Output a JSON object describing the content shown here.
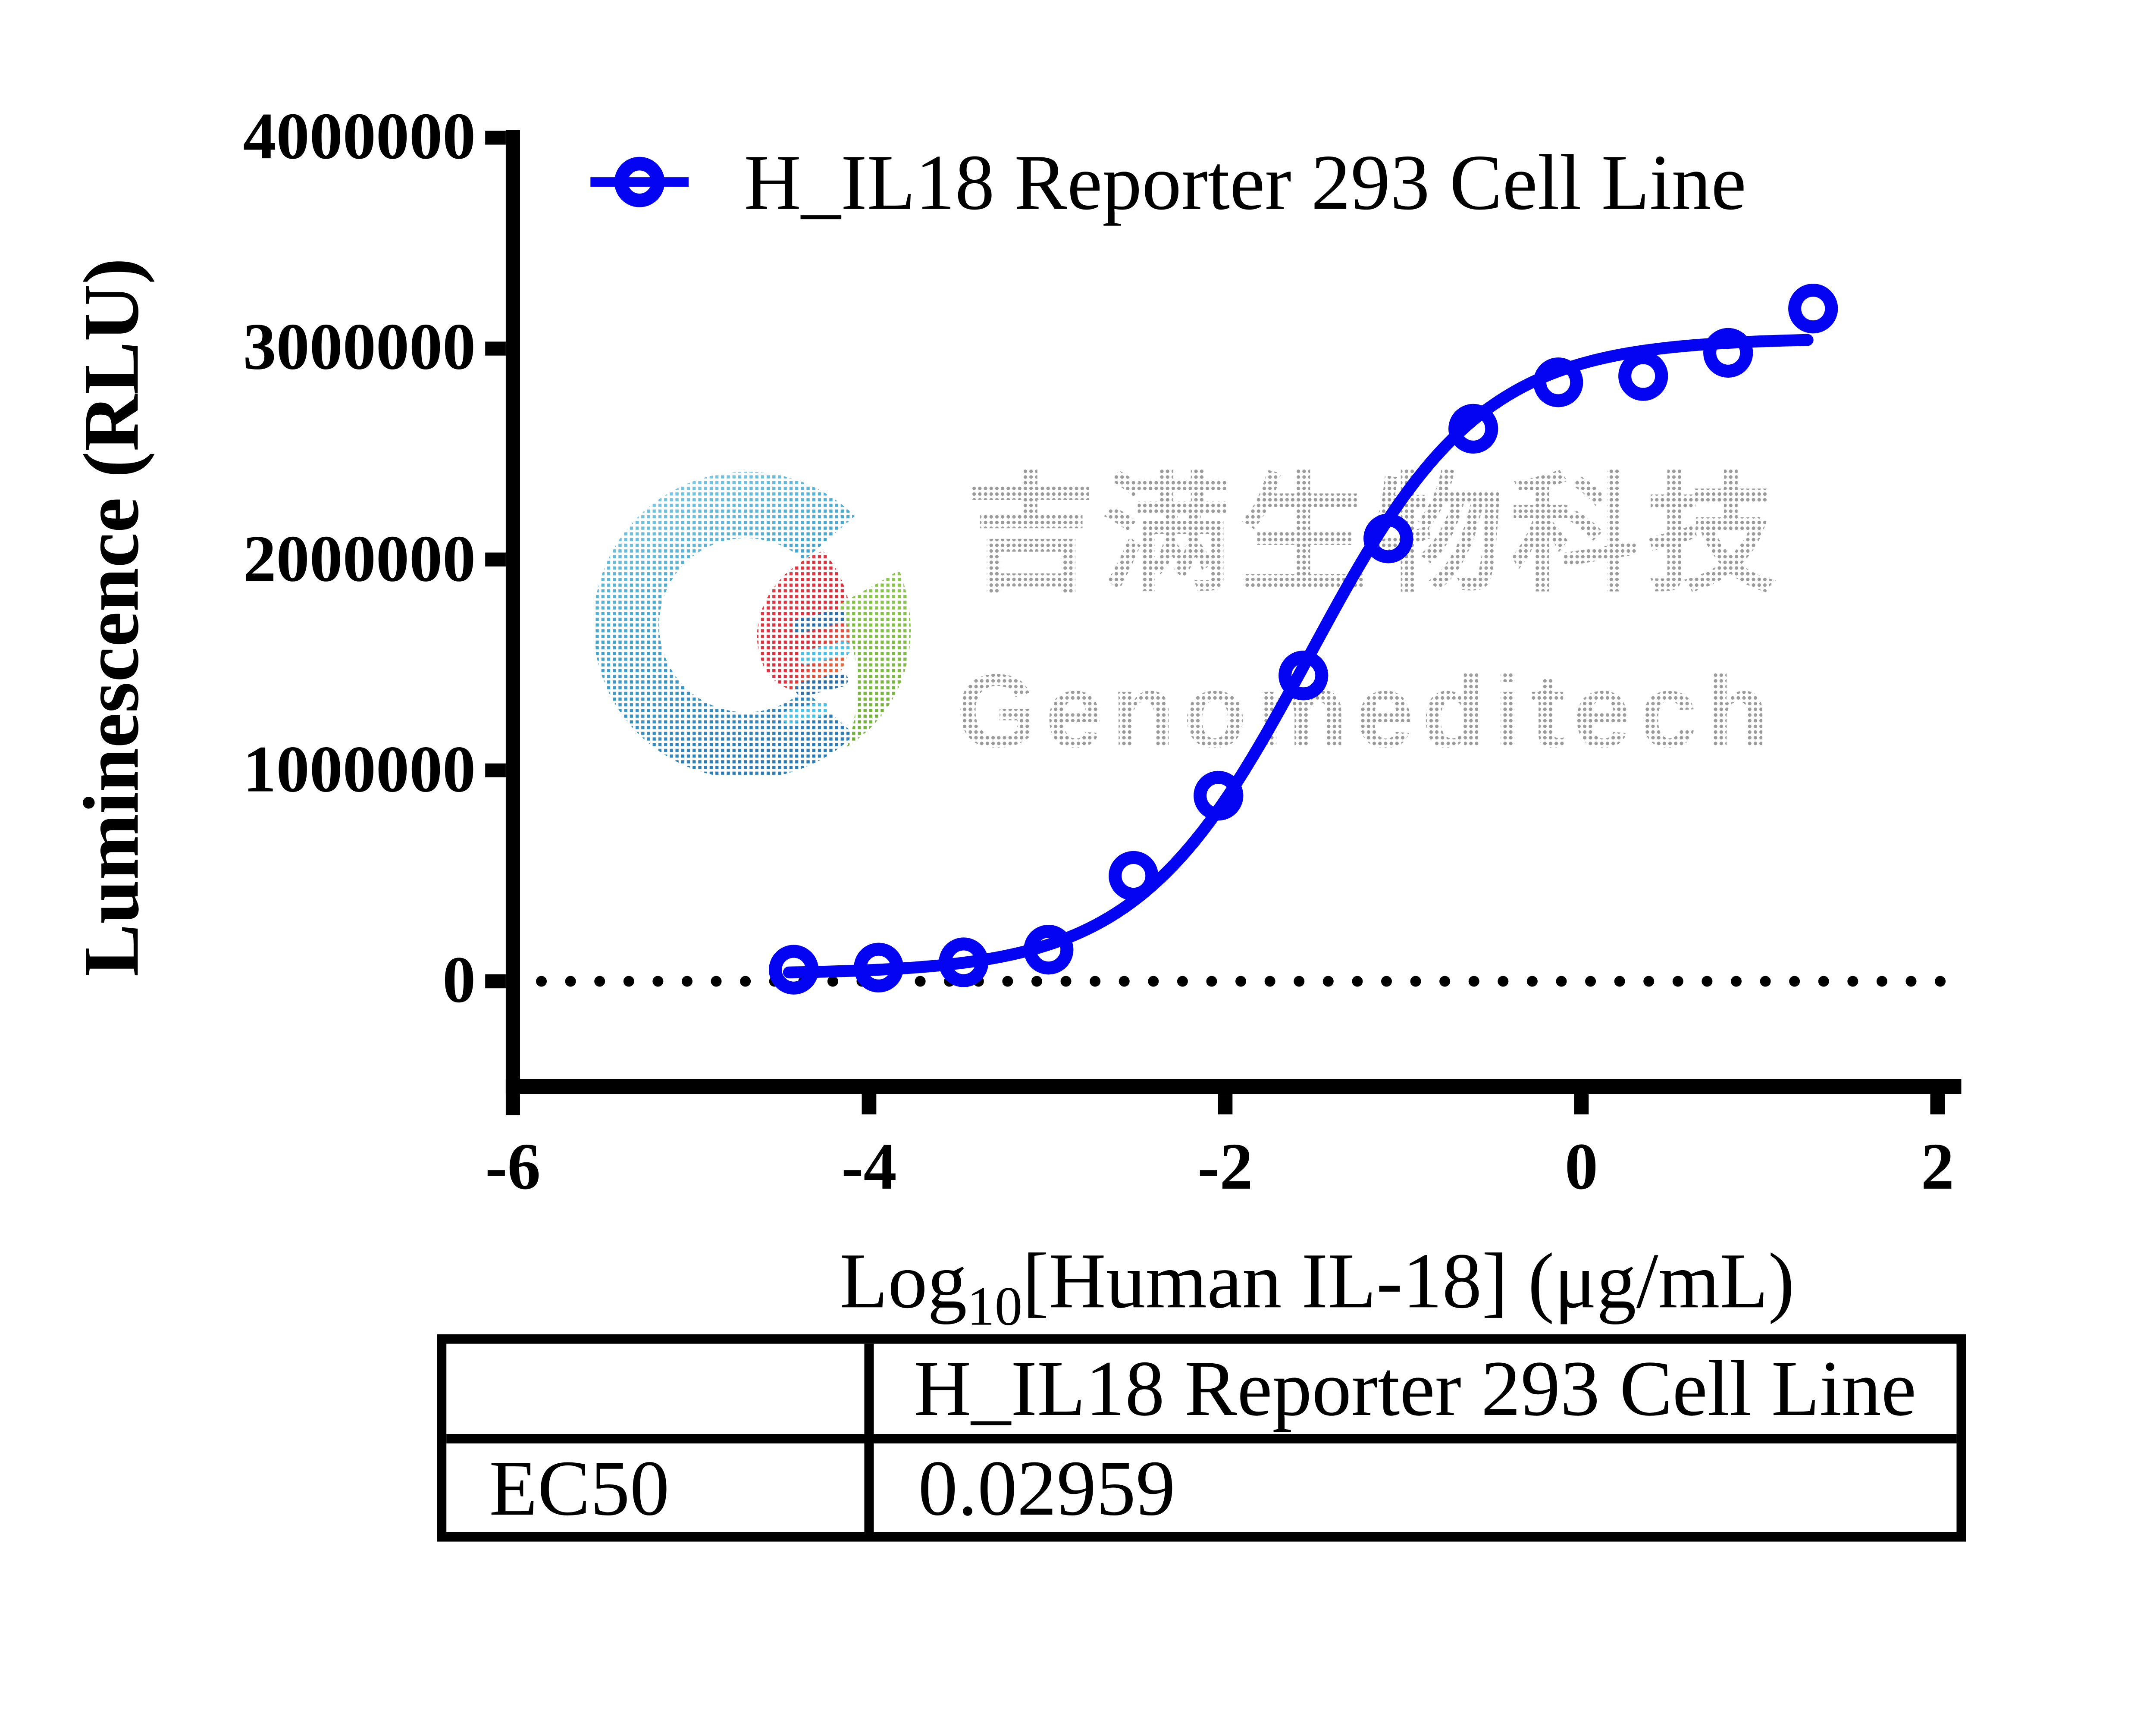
{
  "watermark": {
    "cn_text": "吉满生物科技",
    "en_text": "Genomeditech",
    "logo_icon": "genomeditech-logo",
    "logo_colors": {
      "crescent_top": "#8fd4e8",
      "crescent_bottom": "#2d7cb5",
      "drop_red": "#d92f3e",
      "drop_orange": "#f08a3c",
      "leaf_green": "#7cbb42",
      "rung_blue": "#2e6fa8",
      "rung_cyan": "#49c2e6"
    }
  },
  "legend": {
    "label": "H_IL18 Reporter 293 Cell Line",
    "marker": "open-circle-on-line",
    "color": "#0404f2"
  },
  "chart_data": {
    "type": "scatter",
    "title": "",
    "xlabel": "Log10[Human IL-18] (μg/mL)",
    "xlabel_parts": {
      "pre": "Log",
      "sub": "10",
      "post": "[Human IL-18] (μg/mL)"
    },
    "ylabel": "Luminescence (RLU)",
    "xlim": [
      -6,
      2
    ],
    "ylim": [
      0,
      4000000
    ],
    "xticks": [
      "-6",
      "-4",
      "-2",
      "0",
      "2"
    ],
    "xtick_values": [
      -6,
      -4,
      -2,
      0,
      2
    ],
    "yticks": [
      "0",
      "1000000",
      "2000000",
      "3000000",
      "4000000"
    ],
    "ytick_values": [
      0,
      1000000,
      2000000,
      3000000,
      4000000
    ],
    "grid": false,
    "legend_position": "top-left-inside",
    "baseline": {
      "y": 0,
      "style": "dotted",
      "color": "#000000"
    },
    "series": [
      {
        "name": "H_IL18 Reporter 293 Cell Line",
        "color": "#0404f2",
        "marker": "open-circle",
        "x": [
          -4.423,
          -3.946,
          -3.469,
          -2.992,
          -2.515,
          -2.038,
          -1.561,
          -1.084,
          -0.607,
          -0.13,
          0.347,
          0.824,
          1.301
        ],
        "y": [
          55000,
          65000,
          90000,
          150000,
          500000,
          880000,
          1450000,
          2100000,
          2620000,
          2840000,
          2870000,
          2980000,
          3190000
        ]
      }
    ],
    "fit_curve": {
      "model": "4PL sigmoid",
      "bottom": 35000,
      "top": 3050000,
      "log_ec50": -1.5289,
      "hill": 0.9,
      "x_range": [
        -4.45,
        1.27
      ]
    }
  },
  "table": {
    "corner_label": "",
    "col_header": "H_IL18 Reporter 293 Cell Line",
    "rows": [
      {
        "label": "EC50",
        "value": "0.02959"
      }
    ]
  },
  "colors": {
    "series_blue": "#0404f2",
    "axis_black": "#000000",
    "watermark_gray": "#9b9b9b"
  }
}
